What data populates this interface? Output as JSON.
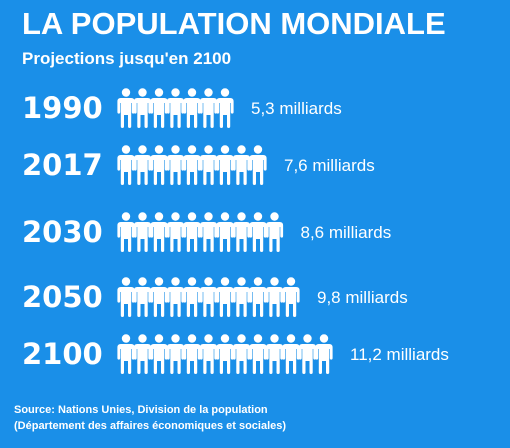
{
  "header": {
    "title": "LA POPULATION MONDIALE",
    "subtitle": "Projections jusqu'en 2100"
  },
  "chart_data": {
    "type": "bar",
    "categories": [
      "1990",
      "2017",
      "2030",
      "2050",
      "2100"
    ],
    "series": [
      {
        "values": [
          5.3,
          7.6,
          8.6,
          9.8,
          11.2
        ],
        "icon_counts": [
          7,
          9,
          10,
          11,
          13
        ],
        "value_labels": [
          "5,3 milliards",
          "7,6 milliards",
          "8,6 milliards",
          "9,8 milliards",
          "11,2 milliards"
        ]
      }
    ],
    "title": "LA POPULATION MONDIALE",
    "subtitle": "Projections jusqu'en 2100",
    "xlabel": "",
    "ylabel": "",
    "unit": "milliards",
    "grid": false
  },
  "source": {
    "line1": "Source:  Nations Unies, Division de la population",
    "line2": "(Département des affaires économiques et sociales)"
  },
  "colors": {
    "background": "#1a8fe8",
    "foreground": "#ffffff"
  },
  "icon": "person-icon"
}
